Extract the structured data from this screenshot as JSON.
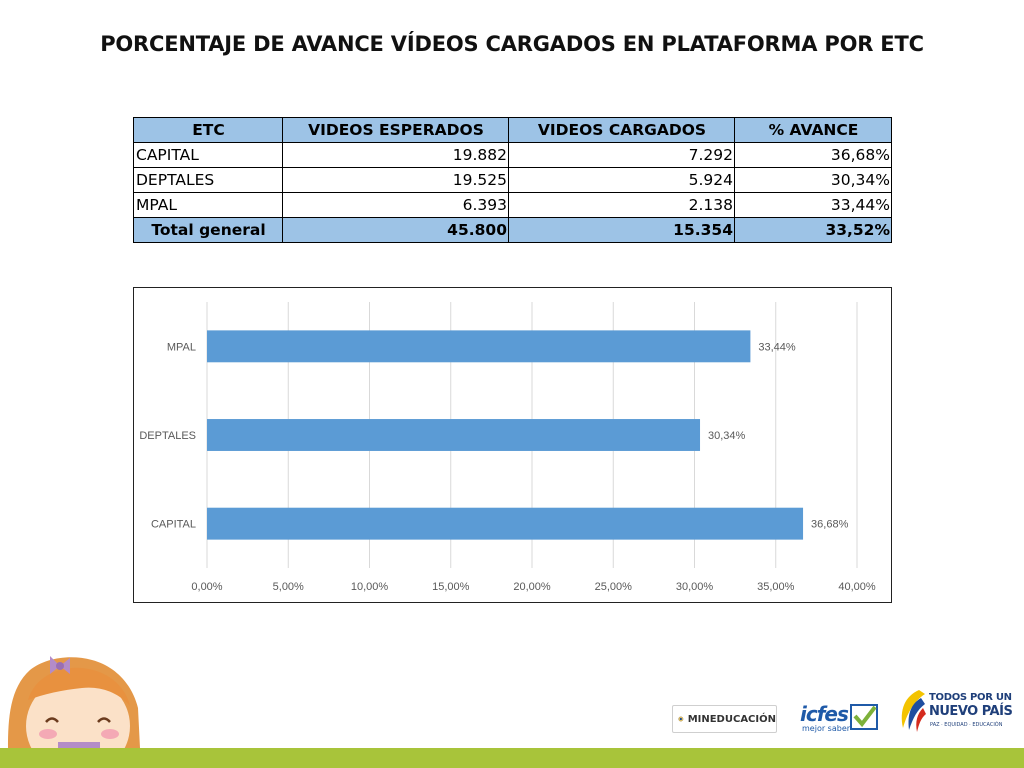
{
  "title": "PORCENTAJE DE AVANCE VÍDEOS CARGADOS EN PLATAFORMA POR ETC",
  "table": {
    "headers": [
      "ETC",
      "VIDEOS ESPERADOS",
      "VIDEOS CARGADOS",
      "% AVANCE"
    ],
    "rows": [
      [
        "CAPITAL",
        "19.882",
        "7.292",
        "36,68%"
      ],
      [
        "DEPTALES",
        "19.525",
        "5.924",
        "30,34%"
      ],
      [
        "MPAL",
        "6.393",
        "2.138",
        "33,44%"
      ]
    ],
    "total": [
      "Total general",
      "45.800",
      "15.354",
      "33,52%"
    ]
  },
  "chart_data": {
    "type": "bar",
    "orientation": "horizontal",
    "title": "",
    "xlabel": "",
    "ylabel": "",
    "categories": [
      "CAPITAL",
      "DEPTALES",
      "MPAL"
    ],
    "values": [
      36.68,
      30.34,
      33.44
    ],
    "data_labels": [
      "36,68%",
      "30,34%",
      "33,44%"
    ],
    "xlim": [
      0,
      40
    ],
    "x_ticks": [
      0,
      5,
      10,
      15,
      20,
      25,
      30,
      35,
      40
    ],
    "x_tick_labels": [
      "0,00%",
      "5,00%",
      "10,00%",
      "15,00%",
      "20,00%",
      "25,00%",
      "30,00%",
      "35,00%",
      "40,00%"
    ],
    "grid": "vertical",
    "bar_color": "#5b9bd5"
  },
  "logos": {
    "mineducacion": "MINEDUCACIÓN",
    "icfes": "icfes",
    "icfes_tag": "mejor saber",
    "todos_line1": "TODOS POR UN",
    "todos_line2": "NUEVO PAÍS",
    "todos_line3": "PAZ · EQUIDAD · EDUCACIÓN"
  },
  "colors": {
    "table_header": "#9dc3e6",
    "bottom_bar": "#a8c43a"
  }
}
